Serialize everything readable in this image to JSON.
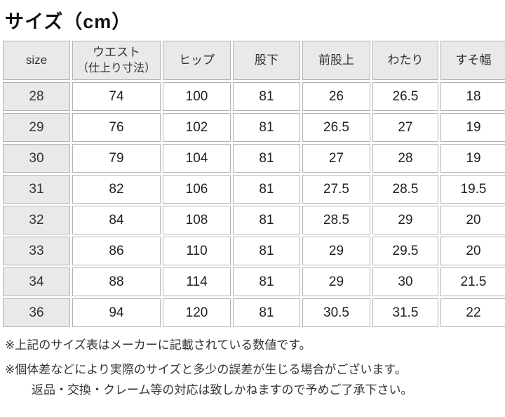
{
  "page": {
    "title": "サイズ（cm）"
  },
  "table": {
    "columns": [
      {
        "label": "size",
        "sublabel": ""
      },
      {
        "label": "ウエスト",
        "sublabel": "（仕上り寸法）"
      },
      {
        "label": "ヒップ",
        "sublabel": ""
      },
      {
        "label": "股下",
        "sublabel": ""
      },
      {
        "label": "前股上",
        "sublabel": ""
      },
      {
        "label": "わたり",
        "sublabel": ""
      },
      {
        "label": "すそ幅",
        "sublabel": ""
      }
    ],
    "rows": [
      [
        "28",
        "74",
        "100",
        "81",
        "26",
        "26.5",
        "18"
      ],
      [
        "29",
        "76",
        "102",
        "81",
        "26.5",
        "27",
        "19"
      ],
      [
        "30",
        "79",
        "104",
        "81",
        "27",
        "28",
        "19"
      ],
      [
        "31",
        "82",
        "106",
        "81",
        "27.5",
        "28.5",
        "19.5"
      ],
      [
        "32",
        "84",
        "108",
        "81",
        "28.5",
        "29",
        "20"
      ],
      [
        "33",
        "86",
        "110",
        "81",
        "29",
        "29.5",
        "20"
      ],
      [
        "34",
        "88",
        "114",
        "81",
        "29",
        "30",
        "21.5"
      ],
      [
        "36",
        "94",
        "120",
        "81",
        "30.5",
        "31.5",
        "22"
      ]
    ]
  },
  "notes": [
    "※上記のサイズ表はメーカーに記載されている数値です。",
    "※個体差などにより実際のサイズと多少の誤差が生じる場合がございます。",
    "返品・交換・クレーム等の対応は致しかねますので予めご了承下さい。"
  ],
  "colors": {
    "header_cell_fill": "#e9e9e9",
    "cell_border": "#b3b3b3",
    "data_cell_fill": "#ffffff",
    "text": "#222222",
    "background": "#ffffff"
  },
  "chart_data": {
    "type": "table",
    "title": "サイズ（cm）",
    "unit": "cm",
    "columns": [
      "size",
      "ウエスト（仕上り寸法）",
      "ヒップ",
      "股下",
      "前股上",
      "わたり",
      "すそ幅"
    ],
    "rows": [
      [
        "28",
        "74",
        "100",
        "81",
        "26",
        "26.5",
        "18"
      ],
      [
        "29",
        "76",
        "102",
        "81",
        "26.5",
        "27",
        "19"
      ],
      [
        "30",
        "79",
        "104",
        "81",
        "27",
        "28",
        "19"
      ],
      [
        "31",
        "82",
        "106",
        "81",
        "27.5",
        "28.5",
        "19.5"
      ],
      [
        "32",
        "84",
        "108",
        "81",
        "28.5",
        "29",
        "20"
      ],
      [
        "33",
        "86",
        "110",
        "81",
        "29",
        "29.5",
        "20"
      ],
      [
        "34",
        "88",
        "114",
        "81",
        "29",
        "30",
        "21.5"
      ],
      [
        "36",
        "94",
        "120",
        "81",
        "30.5",
        "31.5",
        "22"
      ]
    ]
  }
}
